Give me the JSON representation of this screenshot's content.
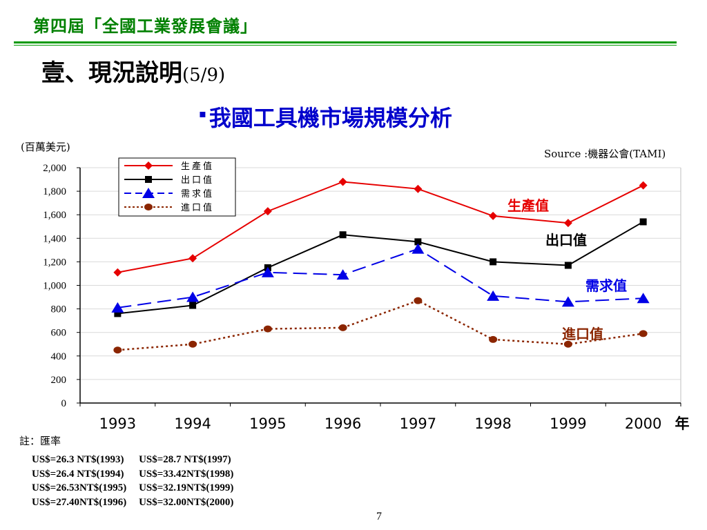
{
  "header": {
    "conference_title": "第四屆「全國工業發展會議」",
    "section_title": "壹、現況說明",
    "section_page": "(5/9)",
    "bullet": "▪",
    "subtitle": "我國工具機市場規模分析"
  },
  "chart_data": {
    "type": "line",
    "unit_label": "(百萬美元)",
    "source": "Source :機器公會(TAMI)",
    "xlabel": "年",
    "x": [
      "1993",
      "1994",
      "1995",
      "1996",
      "1997",
      "1998",
      "1999",
      "2000"
    ],
    "ylim": [
      0,
      2000
    ],
    "y_ticks": [
      "0",
      "200",
      "400",
      "600",
      "800",
      "1,000",
      "1,200",
      "1,400",
      "1,600",
      "1,800",
      "2,000"
    ],
    "grid": "horizontal",
    "legend_position": "top-left",
    "series": [
      {
        "name": "生產值",
        "label": "生產值",
        "color": "#e60000",
        "marker": "diamond",
        "dash": "solid",
        "values": [
          1110,
          1230,
          1630,
          1880,
          1820,
          1590,
          1530,
          1850
        ]
      },
      {
        "name": "出口值",
        "label": "出口值",
        "color": "#000000",
        "marker": "square",
        "dash": "solid",
        "values": [
          760,
          830,
          1150,
          1430,
          1370,
          1200,
          1170,
          1540
        ]
      },
      {
        "name": "需求值",
        "label": "需求值",
        "color": "#0000e6",
        "marker": "triangle",
        "dash": "long-dash",
        "values": [
          810,
          900,
          1110,
          1090,
          1310,
          910,
          860,
          890
        ]
      },
      {
        "name": "進口值",
        "label": "進口值",
        "color": "#8b2500",
        "marker": "circle",
        "dash": "dotted",
        "values": [
          450,
          500,
          630,
          640,
          870,
          540,
          500,
          590
        ]
      }
    ]
  },
  "notes": {
    "title": "註：匯率",
    "rates_col1": [
      "US$=26.3 NT$(1993)",
      "US$=26.4 NT$(1994)",
      "US$=26.53NT$(1995)",
      "US$=27.40NT$(1996)"
    ],
    "rates_col2": [
      "US$=28.7 NT$(1997)",
      "US$=33.42NT$(1998)",
      "US$=32.19NT$(1999)",
      "US$=32.00NT$(2000)"
    ]
  },
  "page_number": "7"
}
